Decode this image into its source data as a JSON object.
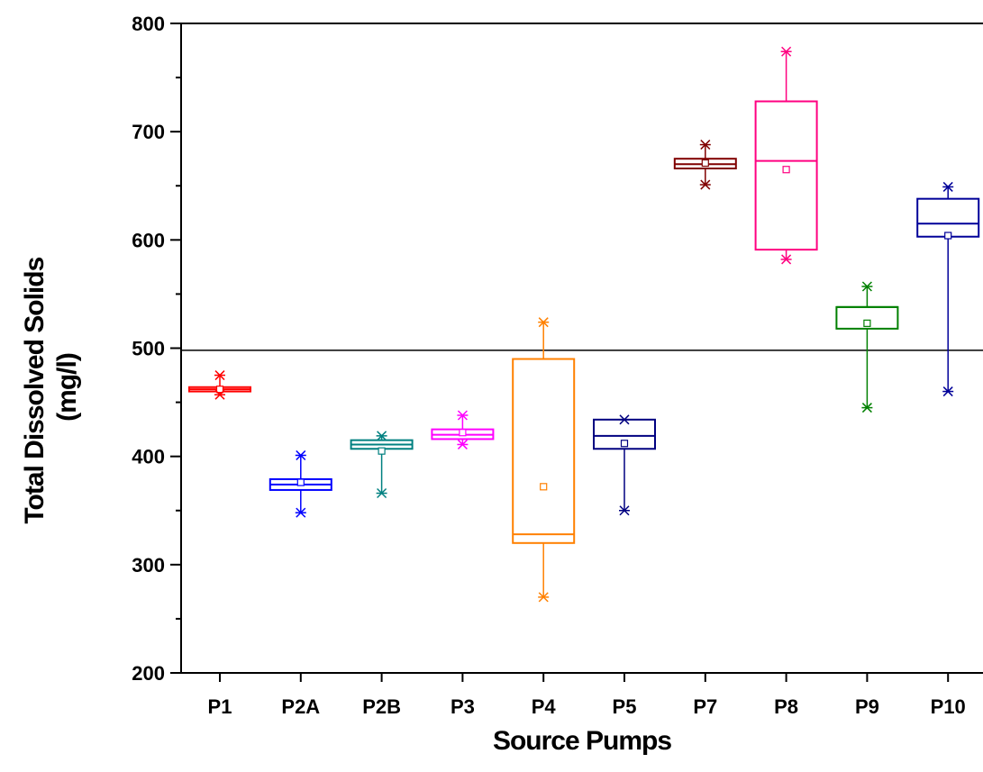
{
  "chart_data": {
    "type": "box",
    "xlabel": "Source Pumps",
    "ylabel": [
      "Total Dissolved Solids",
      "(mg/l)"
    ],
    "ylim": [
      200,
      800
    ],
    "yticks": [
      200,
      300,
      400,
      500,
      600,
      700,
      800
    ],
    "categories": [
      "P1",
      "P2A",
      "P2B",
      "P3",
      "P4",
      "P5",
      "P7",
      "P8",
      "P9",
      "P10"
    ],
    "reference_line": 498,
    "boxes": [
      {
        "name": "P1",
        "color": "#ff0000",
        "min": 457,
        "q1": 460,
        "median": 462,
        "q3": 464,
        "max": 475,
        "mean": 462
      },
      {
        "name": "P2A",
        "color": "#0000ff",
        "min": 348,
        "q1": 369,
        "median": 374,
        "q3": 379,
        "max": 401,
        "mean": 376
      },
      {
        "name": "P2B",
        "color": "#008080",
        "min": 366,
        "q1": 407,
        "median": 411,
        "q3": 415,
        "max": 419,
        "mean": 405
      },
      {
        "name": "P3",
        "color": "#ff00ff",
        "min": 411,
        "q1": 416,
        "median": 420,
        "q3": 425,
        "max": 438,
        "mean": 422
      },
      {
        "name": "P4",
        "color": "#ff8000",
        "min": 270,
        "q1": 320,
        "median": 328,
        "q3": 490,
        "max": 524,
        "mean": 372
      },
      {
        "name": "P5",
        "color": "#000080",
        "min": 350,
        "q1": 407,
        "median": 419,
        "q3": 434,
        "max": 434,
        "mean": 412
      },
      {
        "name": "P7",
        "color": "#800000",
        "min": 651,
        "q1": 666,
        "median": 670,
        "q3": 675,
        "max": 688,
        "mean": 671
      },
      {
        "name": "P8",
        "color": "#ff0080",
        "min": 582,
        "q1": 591,
        "median": 673,
        "q3": 728,
        "max": 774,
        "mean": 665
      },
      {
        "name": "P9",
        "color": "#008000",
        "min": 445,
        "q1": 518,
        "median": 538,
        "q3": 538,
        "max": 557,
        "mean": 523
      },
      {
        "name": "P10",
        "color": "#000099",
        "min": 460,
        "q1": 603,
        "median": 615,
        "q3": 638,
        "max": 649,
        "mean": 604
      }
    ]
  }
}
